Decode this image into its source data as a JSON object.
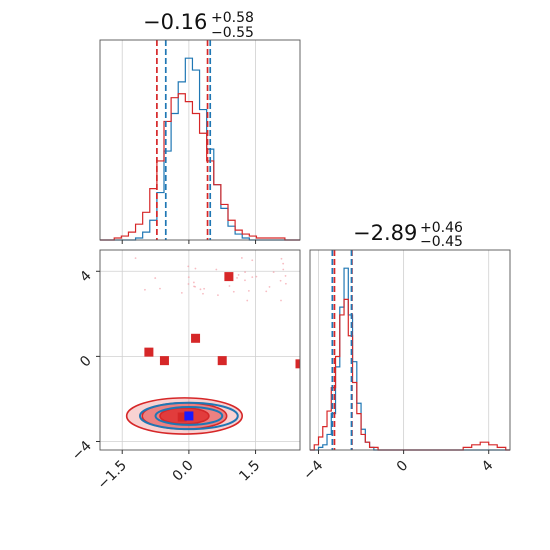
{
  "colors": {
    "blue": "#1f77b4",
    "red": "#d62728",
    "blue_fill": "#5b8fc7",
    "red_fill": "#e03030",
    "grid": "#d0d0d0"
  },
  "titles": {
    "p1": {
      "main": "−0.16",
      "plus": "+0.58",
      "minus": "−0.55"
    },
    "p2": {
      "main": "−2.89",
      "plus": "+0.46",
      "minus": "−0.45"
    }
  },
  "chart_data": [
    {
      "type": "histogram",
      "panel": "marginal-p1",
      "grid": true,
      "xlim": [
        -2.0,
        2.5
      ],
      "x_ticks": [
        -1.5,
        0.0,
        1.5
      ],
      "median": -0.16,
      "quantile_lines": {
        "blue": [
          -0.52,
          0.48
        ],
        "red": [
          -0.72,
          0.42
        ]
      },
      "bins": [
        -2.0,
        -1.84,
        -1.68,
        -1.52,
        -1.36,
        -1.2,
        -1.04,
        -0.88,
        -0.72,
        -0.56,
        -0.4,
        -0.24,
        -0.08,
        0.08,
        0.24,
        0.4,
        0.56,
        0.72,
        0.88,
        1.04,
        1.2,
        1.36,
        1.52,
        1.68,
        1.84,
        2.0,
        2.16,
        2.32,
        2.5
      ],
      "series": [
        {
          "color": "blue",
          "counts": [
            0,
            0,
            0,
            0,
            0,
            1,
            4,
            10,
            24,
            45,
            64,
            80,
            92,
            86,
            66,
            46,
            28,
            16,
            7,
            3,
            1,
            0,
            0,
            0,
            0,
            0,
            0,
            0
          ]
        },
        {
          "color": "red",
          "counts": [
            0,
            0,
            1,
            2,
            4,
            8,
            14,
            26,
            40,
            60,
            72,
            74,
            70,
            64,
            54,
            40,
            28,
            18,
            10,
            5,
            3,
            2,
            1,
            1,
            1,
            1,
            0,
            0
          ]
        }
      ]
    },
    {
      "type": "histogram",
      "panel": "marginal-p2",
      "grid": true,
      "xlim": [
        -4.4,
        5.0
      ],
      "x_ticks": [
        -4,
        0,
        4
      ],
      "median": -2.89,
      "quantile_lines": {
        "blue": [
          -3.35,
          -2.45
        ],
        "red": [
          -3.25,
          -2.43
        ]
      },
      "bins": [
        -4.4,
        -4.2,
        -4.0,
        -3.8,
        -3.6,
        -3.4,
        -3.2,
        -3.0,
        -2.8,
        -2.6,
        -2.4,
        -2.2,
        -2.0,
        -1.8,
        -1.6,
        -1.4,
        -1.2,
        -1.0,
        -0.8,
        -0.6,
        -0.4,
        -0.2,
        0.0,
        0.4,
        0.8,
        1.2,
        1.6,
        2.0,
        2.4,
        2.8,
        3.2,
        3.6,
        4.0,
        4.4,
        4.8,
        5.0
      ],
      "series": [
        {
          "color": "blue",
          "counts": [
            0,
            0,
            1,
            2,
            6,
            14,
            32,
            55,
            70,
            52,
            34,
            18,
            8,
            3,
            1,
            0,
            0,
            0,
            0,
            0,
            0,
            0,
            0,
            0,
            0,
            0,
            0,
            0,
            0,
            0,
            0,
            0,
            0,
            0,
            0
          ]
        },
        {
          "color": "red",
          "counts": [
            0,
            2,
            5,
            9,
            15,
            24,
            36,
            52,
            58,
            44,
            26,
            14,
            6,
            3,
            1,
            1,
            0,
            0,
            0,
            0,
            0,
            0,
            0,
            0,
            0,
            0,
            0,
            0,
            0,
            1,
            2,
            3,
            2,
            1,
            0
          ]
        }
      ]
    },
    {
      "type": "scatter",
      "panel": "joint-p1-p2",
      "grid": true,
      "xlim": [
        -2.0,
        2.5
      ],
      "ylim": [
        -4.4,
        5.0
      ],
      "x_ticks": [
        -1.5,
        0.0,
        1.5
      ],
      "y_ticks": [
        -4,
        0,
        4
      ],
      "truth_marker": {
        "x": 0.0,
        "y": -2.8,
        "color": "blue"
      },
      "red_markers": [
        {
          "x": -0.9,
          "y": 0.2
        },
        {
          "x": -0.55,
          "y": -0.2
        },
        {
          "x": 0.15,
          "y": 0.85
        },
        {
          "x": 0.75,
          "y": -0.2
        },
        {
          "x": 0.9,
          "y": 3.75
        },
        {
          "x": 2.5,
          "y": -0.35
        },
        {
          "x": -0.15,
          "y": -2.85
        }
      ],
      "contours": {
        "blue": [
          {
            "cx": 0.0,
            "cy": -2.8,
            "rx": 1.1,
            "ry": 0.62
          },
          {
            "cx": 0.0,
            "cy": -2.8,
            "rx": 0.75,
            "ry": 0.42
          }
        ],
        "red": [
          {
            "cx": -0.1,
            "cy": -2.8,
            "rx": 1.3,
            "ry": 0.85
          },
          {
            "cx": -0.1,
            "cy": -2.8,
            "rx": 0.95,
            "ry": 0.62
          },
          {
            "cx": -0.1,
            "cy": -2.8,
            "rx": 0.55,
            "ry": 0.38
          }
        ]
      }
    }
  ]
}
